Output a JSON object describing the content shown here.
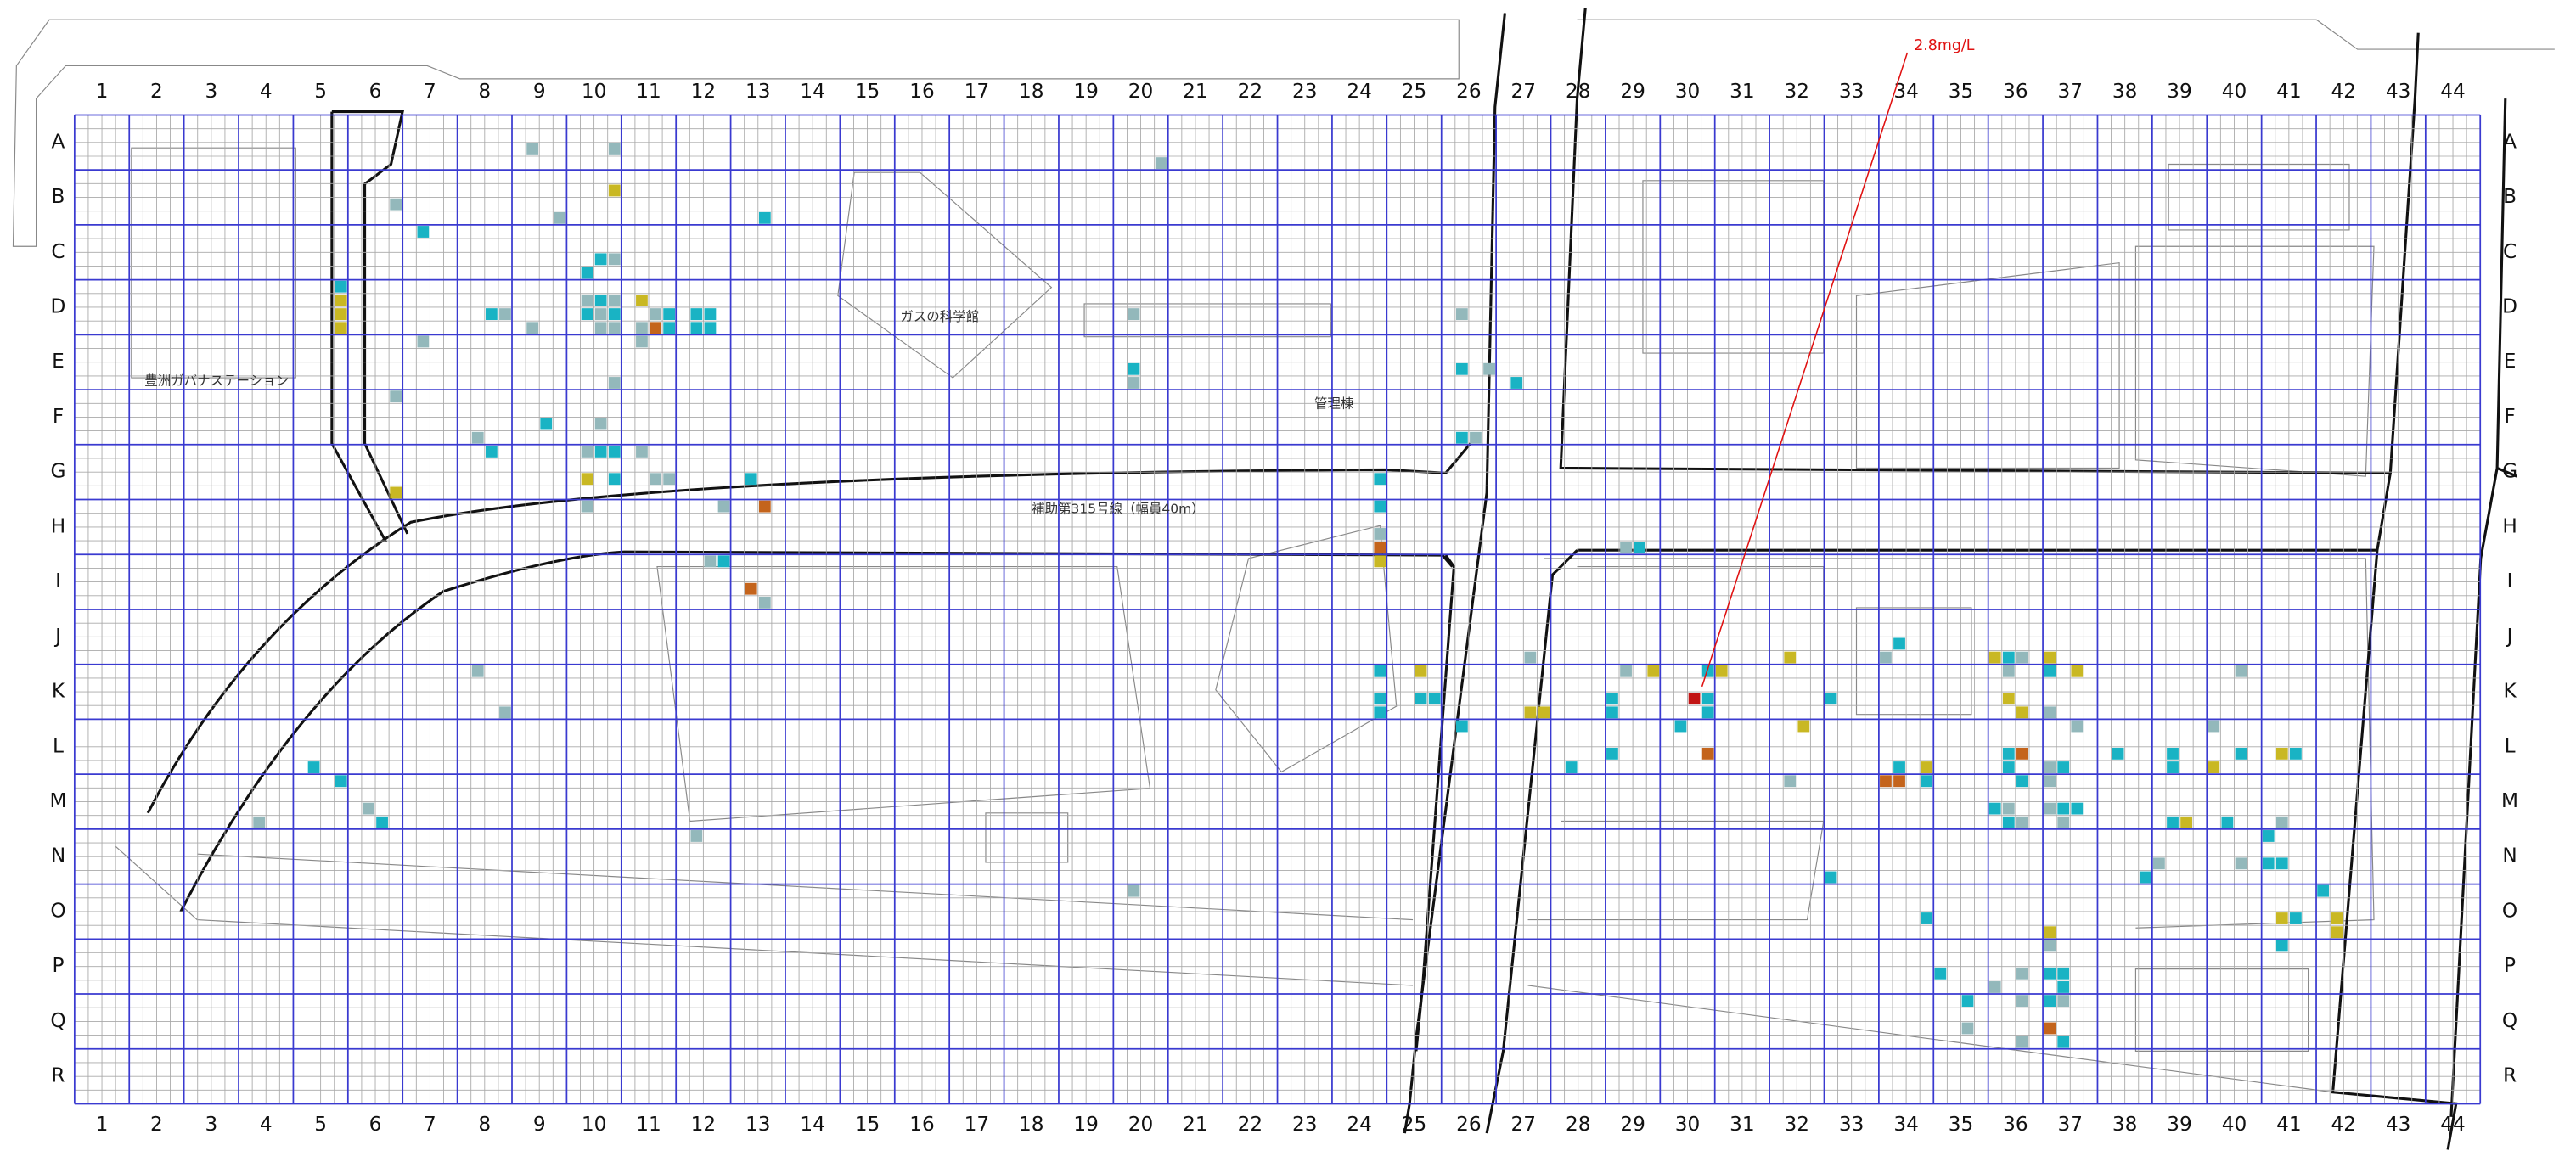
{
  "columns": [
    "1",
    "2",
    "3",
    "4",
    "5",
    "6",
    "7",
    "8",
    "9",
    "10",
    "11",
    "12",
    "13",
    "14",
    "15",
    "16",
    "17",
    "18",
    "19",
    "20",
    "21",
    "22",
    "23",
    "24",
    "25",
    "26",
    "27",
    "28",
    "29",
    "30",
    "31",
    "32",
    "33",
    "34",
    "35",
    "36",
    "37",
    "38",
    "39",
    "40",
    "41",
    "42",
    "43",
    "44"
  ],
  "rows": [
    "A",
    "B",
    "C",
    "D",
    "E",
    "F",
    "G",
    "H",
    "I",
    "J",
    "K",
    "L",
    "M",
    "N",
    "O",
    "P",
    "Q",
    "R"
  ],
  "annotation": "2.8mg/L",
  "place_labels": [
    "ガスの科学館",
    "管理棟",
    "補助第315号線（幅員40m）",
    "豊洲ガバナステーション"
  ],
  "colors": {
    "teal": "#19b3c4",
    "gray": "#93b8bb",
    "olive": "#c9b823",
    "orange": "#c4641c",
    "red": "#c21414"
  },
  "marks": [
    [
      9,
      "A",
      1,
      2,
      "gray"
    ],
    [
      10,
      "A",
      3,
      2,
      "gray"
    ],
    [
      20,
      "A",
      3,
      3,
      "gray"
    ],
    [
      10,
      "B",
      3,
      1,
      "olive"
    ],
    [
      13,
      "B",
      2,
      3,
      "teal"
    ],
    [
      6,
      "B",
      3,
      2,
      "gray"
    ],
    [
      9,
      "B",
      3,
      3,
      "gray"
    ],
    [
      7,
      "C",
      1,
      0,
      "teal"
    ],
    [
      10,
      "C",
      2,
      2,
      "teal"
    ],
    [
      10,
      "C",
      3,
      2,
      "gray"
    ],
    [
      10,
      "C",
      1,
      3,
      "teal"
    ],
    [
      5,
      "D",
      3,
      0,
      "teal"
    ],
    [
      5,
      "D",
      3,
      1,
      "olive"
    ],
    [
      5,
      "D",
      3,
      2,
      "olive"
    ],
    [
      5,
      "D",
      3,
      3,
      "olive"
    ],
    [
      8,
      "D",
      2,
      2,
      "teal"
    ],
    [
      8,
      "D",
      3,
      2,
      "gray"
    ],
    [
      9,
      "D",
      1,
      3,
      "gray"
    ],
    [
      10,
      "D",
      1,
      1,
      "gray"
    ],
    [
      10,
      "D",
      2,
      1,
      "teal"
    ],
    [
      10,
      "D",
      3,
      1,
      "gray"
    ],
    [
      11,
      "D",
      1,
      1,
      "olive"
    ],
    [
      10,
      "D",
      1,
      2,
      "teal"
    ],
    [
      10,
      "D",
      2,
      2,
      "gray"
    ],
    [
      10,
      "D",
      3,
      2,
      "teal"
    ],
    [
      11,
      "D",
      2,
      2,
      "gray"
    ],
    [
      11,
      "D",
      3,
      2,
      "teal"
    ],
    [
      12,
      "D",
      1,
      2,
      "teal"
    ],
    [
      12,
      "D",
      2,
      2,
      "teal"
    ],
    [
      10,
      "D",
      2,
      3,
      "gray"
    ],
    [
      10,
      "D",
      3,
      3,
      "gray"
    ],
    [
      11,
      "D",
      1,
      3,
      "gray"
    ],
    [
      11,
      "D",
      2,
      3,
      "orange"
    ],
    [
      11,
      "D",
      3,
      3,
      "teal"
    ],
    [
      12,
      "D",
      1,
      3,
      "teal"
    ],
    [
      12,
      "D",
      2,
      3,
      "teal"
    ],
    [
      20,
      "D",
      1,
      2,
      "gray"
    ],
    [
      26,
      "D",
      1,
      2,
      "gray"
    ],
    [
      11,
      "E",
      1,
      0,
      "gray"
    ],
    [
      7,
      "E",
      1,
      0,
      "gray"
    ],
    [
      20,
      "E",
      1,
      2,
      "teal"
    ],
    [
      20,
      "E",
      1,
      3,
      "gray"
    ],
    [
      10,
      "E",
      3,
      3,
      "gray"
    ],
    [
      26,
      "E",
      1,
      2,
      "teal"
    ],
    [
      26,
      "E",
      3,
      2,
      "gray"
    ],
    [
      27,
      "E",
      1,
      3,
      "teal"
    ],
    [
      6,
      "F",
      3,
      0,
      "gray"
    ],
    [
      9,
      "F",
      2,
      2,
      "teal"
    ],
    [
      10,
      "F",
      2,
      2,
      "gray"
    ],
    [
      8,
      "F",
      1,
      3,
      "gray"
    ],
    [
      26,
      "F",
      1,
      3,
      "teal"
    ],
    [
      26,
      "F",
      2,
      3,
      "gray"
    ],
    [
      8,
      "G",
      2,
      0,
      "teal"
    ],
    [
      10,
      "G",
      1,
      0,
      "gray"
    ],
    [
      10,
      "G",
      2,
      0,
      "teal"
    ],
    [
      10,
      "G",
      3,
      0,
      "teal"
    ],
    [
      11,
      "G",
      1,
      0,
      "gray"
    ],
    [
      10,
      "G",
      1,
      2,
      "olive"
    ],
    [
      10,
      "G",
      3,
      2,
      "teal"
    ],
    [
      11,
      "G",
      2,
      2,
      "gray"
    ],
    [
      11,
      "G",
      3,
      2,
      "gray"
    ],
    [
      13,
      "G",
      1,
      2,
      "teal"
    ],
    [
      24,
      "G",
      3,
      2,
      "teal"
    ],
    [
      6,
      "G",
      3,
      3,
      "olive"
    ],
    [
      10,
      "H",
      1,
      0,
      "gray"
    ],
    [
      12,
      "H",
      3,
      0,
      "gray"
    ],
    [
      13,
      "H",
      2,
      0,
      "orange"
    ],
    [
      24,
      "H",
      3,
      0,
      "teal"
    ],
    [
      24,
      "H",
      3,
      2,
      "gray"
    ],
    [
      24,
      "H",
      3,
      3,
      "orange"
    ],
    [
      29,
      "H",
      1,
      3,
      "gray"
    ],
    [
      29,
      "H",
      2,
      3,
      "teal"
    ],
    [
      24,
      "I",
      3,
      0,
      "olive"
    ],
    [
      12,
      "I",
      2,
      0,
      "gray"
    ],
    [
      12,
      "I",
      3,
      0,
      "teal"
    ],
    [
      13,
      "I",
      1,
      2,
      "orange"
    ],
    [
      13,
      "I",
      2,
      3,
      "gray"
    ],
    [
      34,
      "J",
      1,
      2,
      "teal"
    ],
    [
      32,
      "J",
      1,
      3,
      "olive"
    ],
    [
      36,
      "J",
      0,
      3,
      "olive"
    ],
    [
      36,
      "J",
      1,
      3,
      "teal"
    ],
    [
      36,
      "J",
      2,
      3,
      "gray"
    ],
    [
      37,
      "J",
      0,
      3,
      "olive"
    ],
    [
      27,
      "J",
      2,
      3,
      "gray"
    ],
    [
      34,
      "J",
      0,
      3,
      "gray"
    ],
    [
      24,
      "K",
      3,
      0,
      "teal"
    ],
    [
      25,
      "K",
      2,
      0,
      "olive"
    ],
    [
      24,
      "K",
      3,
      2,
      "teal"
    ],
    [
      24,
      "K",
      3,
      3,
      "teal"
    ],
    [
      25,
      "K",
      2,
      2,
      "teal"
    ],
    [
      25,
      "K",
      3,
      2,
      "teal"
    ],
    [
      29,
      "K",
      1,
      0,
      "gray"
    ],
    [
      29,
      "K",
      3,
      0,
      "olive"
    ],
    [
      30,
      "K",
      2,
      2,
      "red"
    ],
    [
      30,
      "K",
      3,
      0,
      "teal"
    ],
    [
      31,
      "K",
      0,
      0,
      "olive"
    ],
    [
      30,
      "K",
      3,
      2,
      "teal"
    ],
    [
      30,
      "K",
      3,
      3,
      "teal"
    ],
    [
      29,
      "K",
      0,
      2,
      "teal"
    ],
    [
      29,
      "K",
      0,
      3,
      "teal"
    ],
    [
      27,
      "K",
      2,
      3,
      "olive"
    ],
    [
      27,
      "K",
      3,
      3,
      "olive"
    ],
    [
      33,
      "K",
      0,
      2,
      "teal"
    ],
    [
      36,
      "K",
      1,
      0,
      "gray"
    ],
    [
      36,
      "K",
      1,
      2,
      "olive"
    ],
    [
      37,
      "K",
      0,
      0,
      "teal"
    ],
    [
      36,
      "K",
      2,
      3,
      "olive"
    ],
    [
      37,
      "K",
      0,
      3,
      "gray"
    ],
    [
      37,
      "K",
      2,
      0,
      "olive"
    ],
    [
      40,
      "K",
      2,
      0,
      "gray"
    ],
    [
      8,
      "K",
      1,
      0,
      "gray"
    ],
    [
      8,
      "K",
      3,
      3,
      "gray"
    ],
    [
      26,
      "L",
      1,
      0,
      "teal"
    ],
    [
      30,
      "L",
      1,
      0,
      "teal"
    ],
    [
      32,
      "L",
      2,
      0,
      "olive"
    ],
    [
      37,
      "L",
      2,
      0,
      "gray"
    ],
    [
      36,
      "L",
      1,
      2,
      "teal"
    ],
    [
      36,
      "L",
      2,
      2,
      "orange"
    ],
    [
      38,
      "L",
      1,
      2,
      "teal"
    ],
    [
      39,
      "L",
      1,
      2,
      "teal"
    ],
    [
      40,
      "L",
      0,
      0,
      "gray"
    ],
    [
      40,
      "L",
      2,
      2,
      "teal"
    ],
    [
      41,
      "L",
      1,
      2,
      "olive"
    ],
    [
      41,
      "L",
      2,
      2,
      "teal"
    ],
    [
      30,
      "L",
      3,
      2,
      "orange"
    ],
    [
      29,
      "L",
      0,
      2,
      "teal"
    ],
    [
      28,
      "L",
      1,
      3,
      "teal"
    ],
    [
      5,
      "L",
      1,
      3,
      "teal"
    ],
    [
      34,
      "L",
      1,
      3,
      "teal"
    ],
    [
      34,
      "L",
      3,
      3,
      "olive"
    ],
    [
      36,
      "L",
      1,
      3,
      "teal"
    ],
    [
      37,
      "L",
      0,
      3,
      "gray"
    ],
    [
      37,
      "L",
      1,
      3,
      "teal"
    ],
    [
      39,
      "L",
      1,
      3,
      "teal"
    ],
    [
      40,
      "L",
      0,
      3,
      "olive"
    ],
    [
      5,
      "M",
      3,
      0,
      "teal"
    ],
    [
      6,
      "M",
      1,
      2,
      "gray"
    ],
    [
      6,
      "M",
      2,
      3,
      "teal"
    ],
    [
      4,
      "M",
      1,
      3,
      "gray"
    ],
    [
      34,
      "M",
      0,
      0,
      "orange"
    ],
    [
      34,
      "M",
      1,
      0,
      "orange"
    ],
    [
      34,
      "M",
      3,
      0,
      "teal"
    ],
    [
      36,
      "M",
      2,
      0,
      "teal"
    ],
    [
      37,
      "M",
      0,
      0,
      "gray"
    ],
    [
      36,
      "M",
      0,
      2,
      "teal"
    ],
    [
      36,
      "M",
      1,
      2,
      "gray"
    ],
    [
      37,
      "M",
      0,
      2,
      "gray"
    ],
    [
      37,
      "M",
      1,
      2,
      "teal"
    ],
    [
      37,
      "M",
      2,
      2,
      "teal"
    ],
    [
      36,
      "M",
      1,
      3,
      "teal"
    ],
    [
      36,
      "M",
      2,
      3,
      "gray"
    ],
    [
      37,
      "M",
      1,
      3,
      "gray"
    ],
    [
      39,
      "M",
      1,
      3,
      "teal"
    ],
    [
      39,
      "M",
      2,
      3,
      "olive"
    ],
    [
      40,
      "M",
      1,
      3,
      "teal"
    ],
    [
      41,
      "M",
      1,
      3,
      "gray"
    ],
    [
      32,
      "M",
      1,
      0,
      "gray"
    ],
    [
      12,
      "N",
      1,
      0,
      "gray"
    ],
    [
      41,
      "N",
      0,
      0,
      "teal"
    ],
    [
      41,
      "N",
      0,
      2,
      "teal"
    ],
    [
      41,
      "N",
      1,
      2,
      "teal"
    ],
    [
      40,
      "N",
      2,
      2,
      "gray"
    ],
    [
      39,
      "N",
      0,
      2,
      "gray"
    ],
    [
      38,
      "N",
      3,
      3,
      "teal"
    ],
    [
      33,
      "N",
      0,
      3,
      "teal"
    ],
    [
      20,
      "O",
      1,
      0,
      "gray"
    ],
    [
      42,
      "O",
      0,
      0,
      "teal"
    ],
    [
      41,
      "O",
      2,
      2,
      "teal"
    ],
    [
      41,
      "O",
      1,
      2,
      "olive"
    ],
    [
      42,
      "O",
      1,
      2,
      "olive"
    ],
    [
      42,
      "O",
      1,
      3,
      "olive"
    ],
    [
      34,
      "O",
      3,
      2,
      "teal"
    ],
    [
      37,
      "O",
      0,
      3,
      "olive"
    ],
    [
      37,
      "P",
      0,
      0,
      "gray"
    ],
    [
      41,
      "P",
      1,
      0,
      "teal"
    ],
    [
      37,
      "P",
      1,
      2,
      "teal"
    ],
    [
      35,
      "P",
      0,
      2,
      "teal"
    ],
    [
      36,
      "P",
      2,
      2,
      "gray"
    ],
    [
      37,
      "P",
      0,
      2,
      "teal"
    ],
    [
      36,
      "P",
      0,
      3,
      "gray"
    ],
    [
      37,
      "P",
      1,
      3,
      "teal"
    ],
    [
      35,
      "Q",
      2,
      0,
      "teal"
    ],
    [
      36,
      "Q",
      2,
      0,
      "gray"
    ],
    [
      37,
      "Q",
      0,
      0,
      "teal"
    ],
    [
      37,
      "Q",
      1,
      0,
      "gray"
    ],
    [
      35,
      "Q",
      2,
      2,
      "gray"
    ],
    [
      37,
      "Q",
      0,
      2,
      "orange"
    ],
    [
      36,
      "Q",
      2,
      3,
      "gray"
    ],
    [
      37,
      "Q",
      1,
      3,
      "teal"
    ]
  ]
}
